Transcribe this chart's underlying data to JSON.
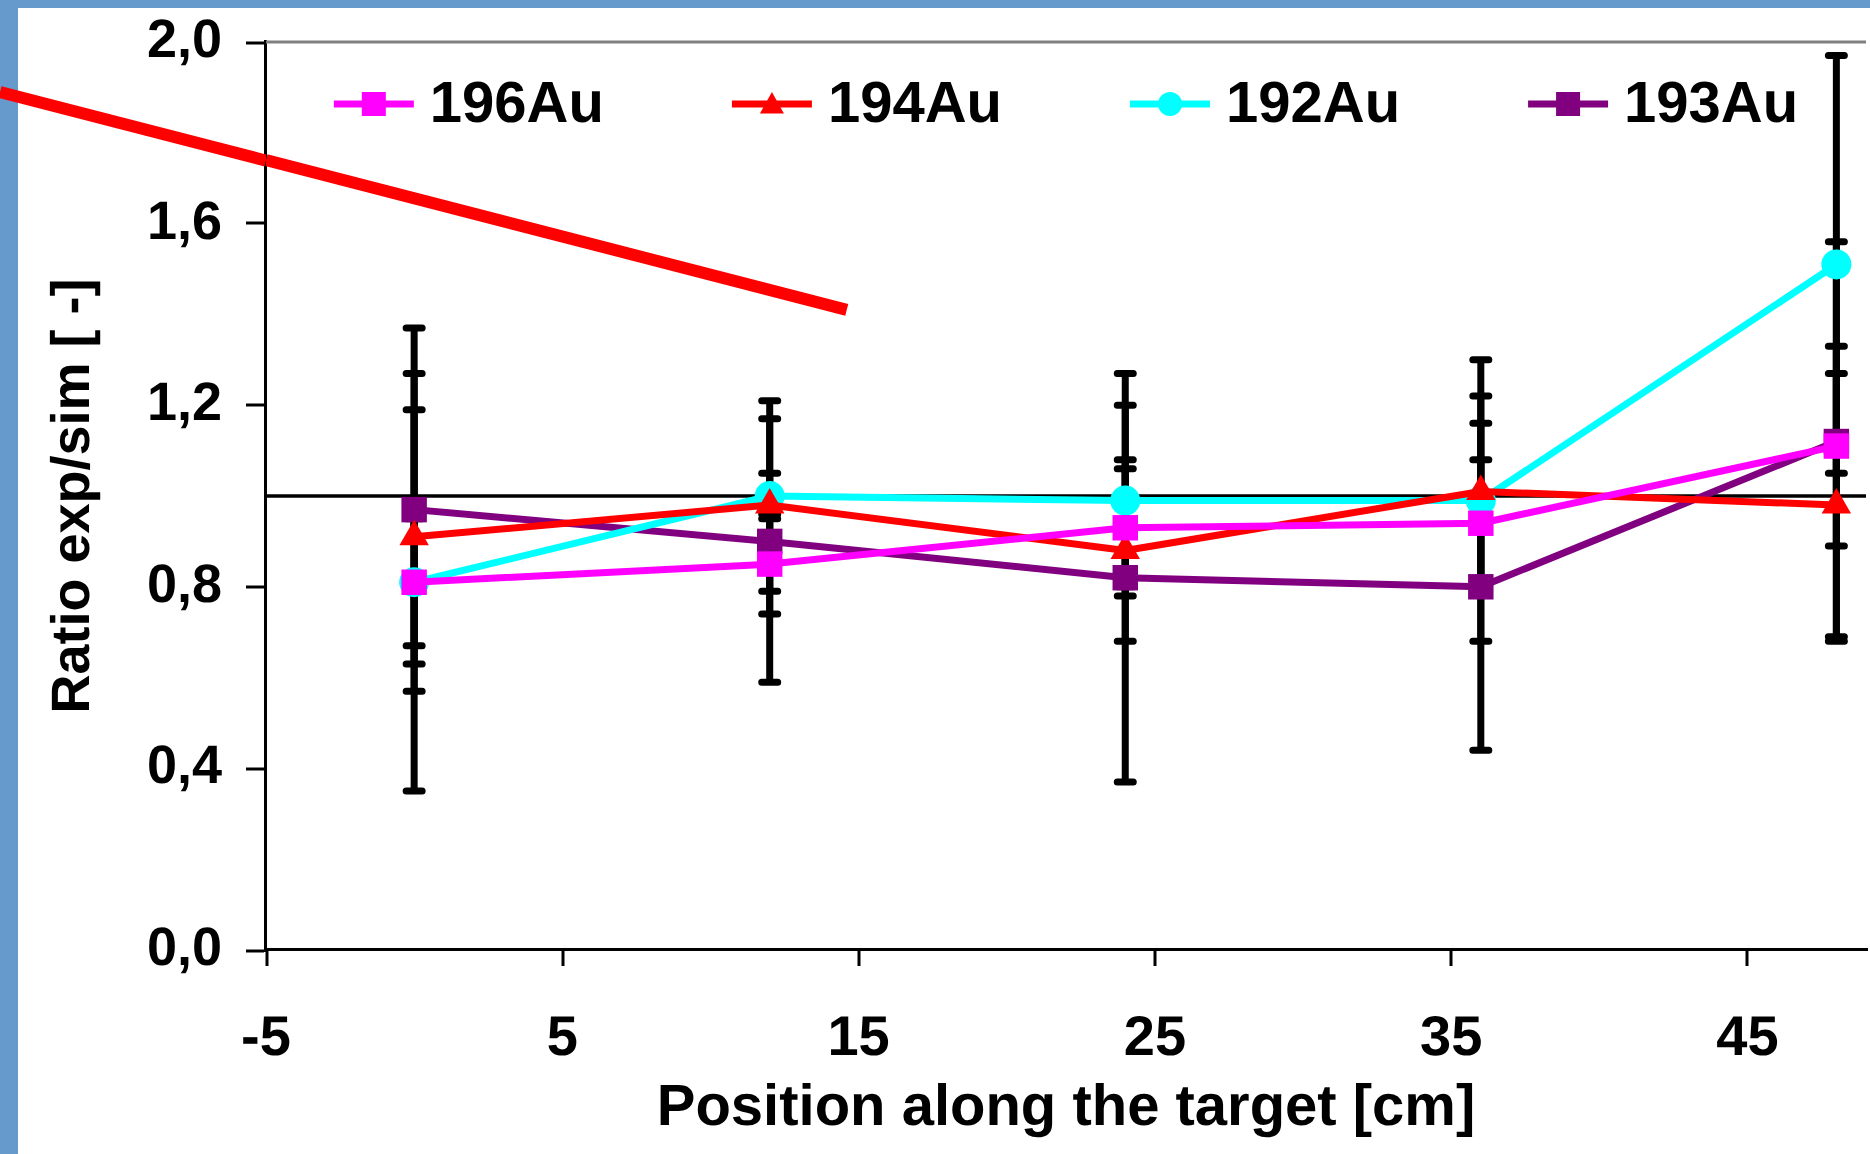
{
  "chart_data": {
    "type": "line",
    "xlabel": "Position along the target [cm]",
    "ylabel": "Ratio exp/sim [ -]",
    "x": [
      0,
      12,
      24,
      36,
      48
    ],
    "series": [
      {
        "name": "196Au",
        "color": "#ff00ff",
        "marker": "square",
        "values": [
          0.81,
          0.85,
          0.93,
          0.94,
          1.11
        ],
        "errors": [
          0.14,
          0.11,
          0.13,
          0.14,
          0.22
        ]
      },
      {
        "name": "194Au",
        "color": "#ff0000",
        "marker": "triangle",
        "values": [
          0.91,
          0.98,
          0.88,
          1.01,
          0.98
        ],
        "errors": [
          0.28,
          0.19,
          0.2,
          0.21,
          0.29
        ]
      },
      {
        "name": "192Au",
        "color": "#00ffff",
        "marker": "circle",
        "values": [
          0.81,
          1.0,
          0.99,
          0.99,
          1.51
        ],
        "errors": [
          0.46,
          0.05,
          0.21,
          0.31,
          0.46
        ]
      },
      {
        "name": "193Au",
        "color": "#800080",
        "marker": "square",
        "values": [
          0.97,
          0.9,
          0.82,
          0.8,
          1.12
        ],
        "errors": [
          0.4,
          0.31,
          0.45,
          0.36,
          0.44
        ]
      },
      {
        "type": "line",
        "color": "#ff0000",
        "marker": "none",
        "x": [
          -5,
          14.6
        ],
        "values": [
          1.74,
          1.41
        ]
      }
    ],
    "xlim": [
      -5,
      49
    ],
    "xticks": [
      -5,
      5,
      15,
      25,
      35,
      45
    ],
    "ylim": [
      0,
      2
    ],
    "yticks": [
      {
        "value": 0,
        "label": "0,0"
      },
      {
        "value": 0.4,
        "label": "0,4"
      },
      {
        "value": 0.8,
        "label": "0,8"
      },
      {
        "value": 1.2,
        "label": "1,2"
      },
      {
        "value": 1.6,
        "label": "1,6"
      },
      {
        "value": 2,
        "label": "2,0"
      }
    ],
    "ref_lines": [
      {
        "axis": "y",
        "value": 1,
        "color": "#000000"
      }
    ],
    "legend": "top"
  }
}
